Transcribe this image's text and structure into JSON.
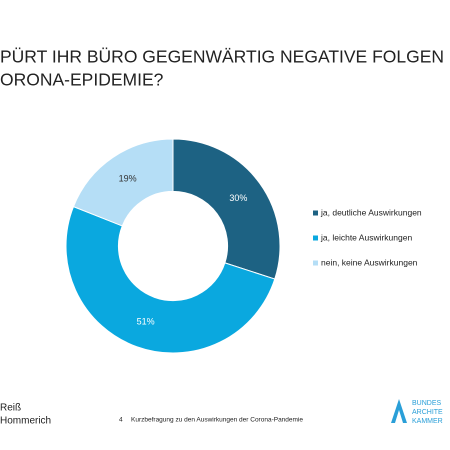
{
  "chart_data": {
    "type": "pie",
    "title_lines": [
      "PÜRT IHR BÜRO GEGENWÄRTIG NEGATIVE FOLGEN DER",
      "ORONA-EPIDEMIE?"
    ],
    "categories": [
      "ja, deutliche Auswirkungen",
      "ja, leichte Auswirkungen",
      "nein, keine Auswirkungen"
    ],
    "values": [
      30,
      51,
      19
    ],
    "value_labels": [
      "30%",
      "51%",
      "19%"
    ],
    "colors": [
      "#1d6283",
      "#0aa8df",
      "#b5def6"
    ],
    "value_label_colors": [
      "#ffffff",
      "#ffffff",
      "#333333"
    ],
    "inner_radius_ratio": 0.51
  },
  "footer": {
    "brand_lines": [
      "Reiß",
      "Hommerich"
    ],
    "page": "4",
    "caption": "Kurzbefragung zu den Auswirkungen der Corona-Pandemie",
    "logo_lines": [
      "BUNDES",
      "ARCHITE",
      "KAMMER"
    ]
  }
}
